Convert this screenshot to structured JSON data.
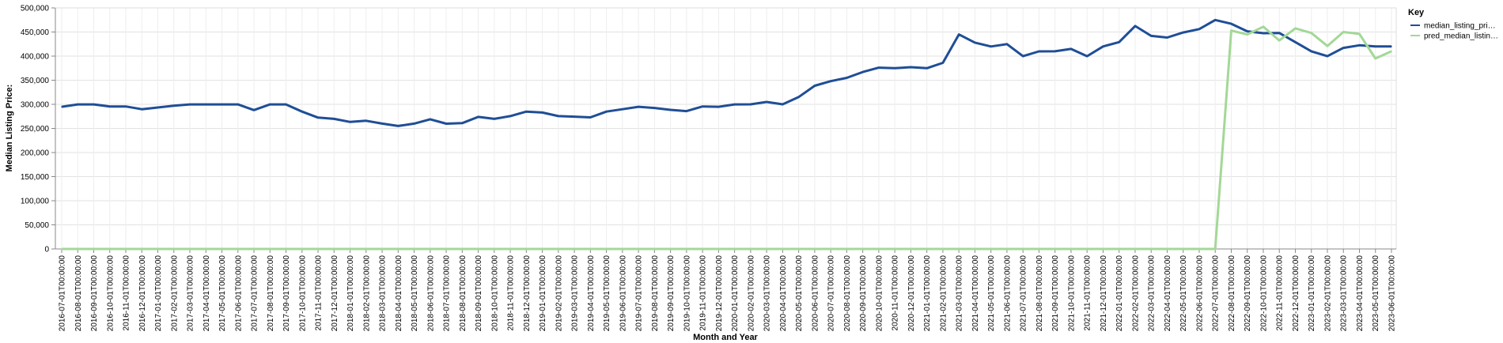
{
  "chart_data": {
    "type": "line",
    "xlabel": "Month and Year",
    "ylabel": "Median Listing Price:",
    "ylim": [
      0,
      500000
    ],
    "yticks": [
      0,
      50000,
      100000,
      150000,
      200000,
      250000,
      300000,
      350000,
      400000,
      450000,
      500000
    ],
    "ytick_labels": [
      "0",
      "50,000",
      "100,000",
      "150,000",
      "200,000",
      "250,000",
      "300,000",
      "350,000",
      "400,000",
      "450,000",
      "500,000"
    ],
    "grid": true,
    "legend": {
      "title": "Key",
      "placement": "top-right"
    },
    "categories": [
      "2016-07-01T00:00:00",
      "2016-08-01T00:00:00",
      "2016-09-01T00:00:00",
      "2016-10-01T00:00:00",
      "2016-11-01T00:00:00",
      "2016-12-01T00:00:00",
      "2017-01-01T00:00:00",
      "2017-02-01T00:00:00",
      "2017-03-01T00:00:00",
      "2017-04-01T00:00:00",
      "2017-05-01T00:00:00",
      "2017-06-01T00:00:00",
      "2017-07-01T00:00:00",
      "2017-08-01T00:00:00",
      "2017-09-01T00:00:00",
      "2017-10-01T00:00:00",
      "2017-11-01T00:00:00",
      "2017-12-01T00:00:00",
      "2018-01-01T00:00:00",
      "2018-02-01T00:00:00",
      "2018-03-01T00:00:00",
      "2018-04-01T00:00:00",
      "2018-05-01T00:00:00",
      "2018-06-01T00:00:00",
      "2018-07-01T00:00:00",
      "2018-08-01T00:00:00",
      "2018-09-01T00:00:00",
      "2018-10-01T00:00:00",
      "2018-11-01T00:00:00",
      "2018-12-01T00:00:00",
      "2019-01-01T00:00:00",
      "2019-02-01T00:00:00",
      "2019-03-01T00:00:00",
      "2019-04-01T00:00:00",
      "2019-05-01T00:00:00",
      "2019-06-01T00:00:00",
      "2019-07-01T00:00:00",
      "2019-08-01T00:00:00",
      "2019-09-01T00:00:00",
      "2019-10-01T00:00:00",
      "2019-11-01T00:00:00",
      "2019-12-01T00:00:00",
      "2020-01-01T00:00:00",
      "2020-02-01T00:00:00",
      "2020-03-01T00:00:00",
      "2020-04-01T00:00:00",
      "2020-05-01T00:00:00",
      "2020-06-01T00:00:00",
      "2020-07-01T00:00:00",
      "2020-08-01T00:00:00",
      "2020-09-01T00:00:00",
      "2020-10-01T00:00:00",
      "2020-11-01T00:00:00",
      "2020-12-01T00:00:00",
      "2021-01-01T00:00:00",
      "2021-02-01T00:00:00",
      "2021-03-01T00:00:00",
      "2021-04-01T00:00:00",
      "2021-05-01T00:00:00",
      "2021-06-01T00:00:00",
      "2021-07-01T00:00:00",
      "2021-08-01T00:00:00",
      "2021-09-01T00:00:00",
      "2021-10-01T00:00:00",
      "2021-11-01T00:00:00",
      "2021-12-01T00:00:00",
      "2022-01-01T00:00:00",
      "2022-02-01T00:00:00",
      "2022-03-01T00:00:00",
      "2022-04-01T00:00:00",
      "2022-05-01T00:00:00",
      "2022-06-01T00:00:00",
      "2022-07-01T00:00:00",
      "2022-08-01T00:00:00",
      "2022-09-01T00:00:00",
      "2022-10-01T00:00:00",
      "2022-11-01T00:00:00",
      "2022-12-01T00:00:00",
      "2023-01-01T00:00:00",
      "2023-02-01T00:00:00",
      "2023-03-01T00:00:00",
      "2023-04-01T00:00:00",
      "2023-05-01T00:00:00",
      "2023-06-01T00:00:00"
    ],
    "series": [
      {
        "name": "median_listing_pri…",
        "color": "#1f4e96",
        "values": [
          295000,
          299900,
          299900,
          295500,
          295500,
          289900,
          293500,
          297000,
          299900,
          299900,
          299900,
          299900,
          288000,
          299900,
          299900,
          284900,
          272500,
          269900,
          263500,
          265900,
          260000,
          255000,
          260000,
          269000,
          259900,
          261000,
          273900,
          269900,
          275500,
          285000,
          283000,
          275500,
          274500,
          272900,
          285000,
          289900,
          295000,
          292500,
          288500,
          285900,
          295500,
          294900,
          299900,
          300000,
          305000,
          300000,
          315000,
          338500,
          348000,
          355000,
          367000,
          376000,
          375000,
          377000,
          375000,
          386000,
          445000,
          428000,
          420000,
          425000,
          399900,
          409900,
          410000,
          415000,
          399900,
          420000,
          429000,
          462500,
          442000,
          438500,
          449000,
          456000,
          475000,
          467000,
          451500,
          447500,
          448000,
          429000,
          410000,
          399900,
          417000,
          422500,
          420000,
          420000
        ]
      },
      {
        "name": "pred_median_listin…",
        "color": "#a3d897",
        "values": [
          0,
          0,
          0,
          0,
          0,
          0,
          0,
          0,
          0,
          0,
          0,
          0,
          0,
          0,
          0,
          0,
          0,
          0,
          0,
          0,
          0,
          0,
          0,
          0,
          0,
          0,
          0,
          0,
          0,
          0,
          0,
          0,
          0,
          0,
          0,
          0,
          0,
          0,
          0,
          0,
          0,
          0,
          0,
          0,
          0,
          0,
          0,
          0,
          0,
          0,
          0,
          0,
          0,
          0,
          0,
          0,
          0,
          0,
          0,
          0,
          0,
          0,
          0,
          0,
          0,
          0,
          0,
          0,
          0,
          0,
          0,
          0,
          0,
          453000,
          445000,
          461000,
          432500,
          457500,
          448000,
          421000,
          450000,
          446000,
          395000,
          410000
        ]
      }
    ]
  }
}
